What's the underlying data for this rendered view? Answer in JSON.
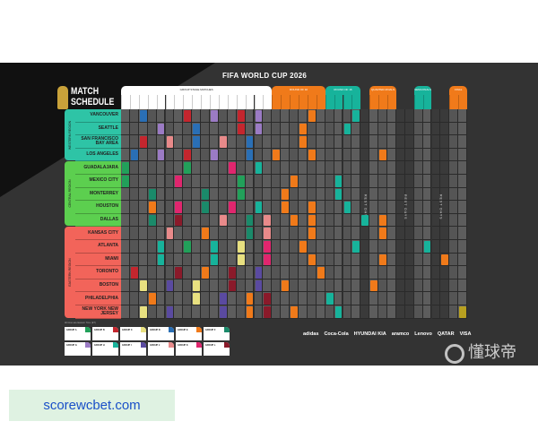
{
  "poster": {
    "title": "FIFA WORLD CUP 2026",
    "logo_text": "MATCH SCHEDULE",
    "note": "All times are Eastern Time (ET)"
  },
  "stages": [
    {
      "label": "GROUP STAGE MATCHES",
      "cols": 17,
      "color": "#ffffff"
    },
    {
      "label": "ROUND OF 32",
      "cols": 6,
      "color": "#f07a1a"
    },
    {
      "label": "ROUND OF 16",
      "cols": 4,
      "color": "#17b39b"
    },
    {
      "label": "REST DAY",
      "cols": 1,
      "color": "rest"
    },
    {
      "label": "QUARTER-FINALS",
      "cols": 3,
      "color": "#f07a1a"
    },
    {
      "label": "REST DAYS",
      "cols": 2,
      "color": "rest"
    },
    {
      "label": "SEMI-FINALS",
      "cols": 2,
      "color": "#17b39b"
    },
    {
      "label": "REST DAYS",
      "cols": 2,
      "color": "rest"
    },
    {
      "label": "FINAL",
      "cols": 2,
      "color": "#f07a1a"
    }
  ],
  "regions": [
    {
      "label": "WESTERN REGION",
      "rows": 4,
      "color": "#2ec4a6"
    },
    {
      "label": "CENTRAL REGION",
      "rows": 5,
      "color": "#5ccf4f"
    },
    {
      "label": "EASTERN REGION",
      "rows": 7,
      "color": "#f2645a"
    }
  ],
  "cities": [
    "VANCOUVER",
    "SEATTLE",
    "SAN FRANCISCO BAY AREA",
    "LOS ANGELES",
    "GUADALAJARA",
    "MEXICO CITY",
    "MONTERREY",
    "HOUSTON",
    "DALLAS",
    "KANSAS CITY",
    "ATLANTA",
    "MIAMI",
    "TORONTO",
    "BOSTON",
    "PHILADELPHIA",
    "NEW YORK NEW JERSEY"
  ],
  "matches": [
    [
      0,
      2,
      "#2a6fb5"
    ],
    [
      0,
      7,
      "#c4262e"
    ],
    [
      0,
      10,
      "#9b7bc4"
    ],
    [
      0,
      13,
      "#c4262e"
    ],
    [
      0,
      15,
      "#9b7bc4"
    ],
    [
      0,
      21,
      "#f07a1a"
    ],
    [
      0,
      26,
      "#17b39b"
    ],
    [
      1,
      4,
      "#9b7bc4"
    ],
    [
      1,
      8,
      "#2a6fb5"
    ],
    [
      1,
      13,
      "#c4262e"
    ],
    [
      1,
      15,
      "#9b7bc4"
    ],
    [
      1,
      20,
      "#f07a1a"
    ],
    [
      1,
      25,
      "#17b39b"
    ],
    [
      2,
      2,
      "#c4262e"
    ],
    [
      2,
      5,
      "#e88a8a"
    ],
    [
      2,
      8,
      "#2a6fb5"
    ],
    [
      2,
      11,
      "#e88a8a"
    ],
    [
      2,
      14,
      "#2a6fb5"
    ],
    [
      2,
      20,
      "#f07a1a"
    ],
    [
      3,
      1,
      "#2a6fb5"
    ],
    [
      3,
      4,
      "#9b7bc4"
    ],
    [
      3,
      7,
      "#c4262e"
    ],
    [
      3,
      10,
      "#9b7bc4"
    ],
    [
      3,
      14,
      "#2a6fb5"
    ],
    [
      3,
      17,
      "#f07a1a"
    ],
    [
      3,
      21,
      "#f07a1a"
    ],
    [
      3,
      29,
      "#f07a1a"
    ],
    [
      4,
      0,
      "#22a05a"
    ],
    [
      4,
      7,
      "#22a05a"
    ],
    [
      4,
      12,
      "#e0266e"
    ],
    [
      4,
      15,
      "#17b39b"
    ],
    [
      5,
      0,
      "#22a05a"
    ],
    [
      5,
      6,
      "#e0266e"
    ],
    [
      5,
      13,
      "#22a05a"
    ],
    [
      5,
      19,
      "#f07a1a"
    ],
    [
      5,
      24,
      "#17b39b"
    ],
    [
      6,
      3,
      "#1a8a6a"
    ],
    [
      6,
      9,
      "#1a8a6a"
    ],
    [
      6,
      13,
      "#22a05a"
    ],
    [
      6,
      18,
      "#f07a1a"
    ],
    [
      6,
      24,
      "#17b39b"
    ],
    [
      7,
      3,
      "#f07a1a"
    ],
    [
      7,
      6,
      "#e0266e"
    ],
    [
      7,
      9,
      "#1a8a6a"
    ],
    [
      7,
      12,
      "#e0266e"
    ],
    [
      7,
      15,
      "#17b39b"
    ],
    [
      7,
      18,
      "#f07a1a"
    ],
    [
      7,
      21,
      "#f07a1a"
    ],
    [
      7,
      25,
      "#17b39b"
    ],
    [
      8,
      3,
      "#1a8a6a"
    ],
    [
      8,
      6,
      "#8a1a2a"
    ],
    [
      8,
      11,
      "#e88a8a"
    ],
    [
      8,
      14,
      "#1a8a6a"
    ],
    [
      8,
      16,
      "#e88a8a"
    ],
    [
      8,
      19,
      "#f07a1a"
    ],
    [
      8,
      21,
      "#f07a1a"
    ],
    [
      8,
      27,
      "#17b39b"
    ],
    [
      8,
      29,
      "#f07a1a"
    ],
    [
      9,
      5,
      "#e88a8a"
    ],
    [
      9,
      9,
      "#f07a1a"
    ],
    [
      9,
      14,
      "#1a8a6a"
    ],
    [
      9,
      16,
      "#e88a8a"
    ],
    [
      9,
      21,
      "#f07a1a"
    ],
    [
      9,
      29,
      "#f07a1a"
    ],
    [
      10,
      4,
      "#17b39b"
    ],
    [
      10,
      7,
      "#22a05a"
    ],
    [
      10,
      10,
      "#17b39b"
    ],
    [
      10,
      13,
      "#e8e080"
    ],
    [
      10,
      16,
      "#e0266e"
    ],
    [
      10,
      20,
      "#f07a1a"
    ],
    [
      10,
      26,
      "#17b39b"
    ],
    [
      10,
      34,
      "#17b39b"
    ],
    [
      11,
      4,
      "#17b39b"
    ],
    [
      11,
      10,
      "#17b39b"
    ],
    [
      11,
      13,
      "#e8e080"
    ],
    [
      11,
      16,
      "#e0266e"
    ],
    [
      11,
      21,
      "#f07a1a"
    ],
    [
      11,
      29,
      "#f07a1a"
    ],
    [
      11,
      36,
      "#f07a1a"
    ],
    [
      12,
      1,
      "#c4262e"
    ],
    [
      12,
      6,
      "#8a1a2a"
    ],
    [
      12,
      9,
      "#f07a1a"
    ],
    [
      12,
      12,
      "#8a1a2a"
    ],
    [
      12,
      15,
      "#5a4aa0"
    ],
    [
      12,
      22,
      "#f07a1a"
    ],
    [
      13,
      2,
      "#e8e080"
    ],
    [
      13,
      5,
      "#5a4aa0"
    ],
    [
      13,
      8,
      "#e8e080"
    ],
    [
      13,
      12,
      "#8a1a2a"
    ],
    [
      13,
      15,
      "#5a4aa0"
    ],
    [
      13,
      18,
      "#f07a1a"
    ],
    [
      13,
      28,
      "#f07a1a"
    ],
    [
      14,
      3,
      "#f07a1a"
    ],
    [
      14,
      8,
      "#e8e080"
    ],
    [
      14,
      11,
      "#5a4aa0"
    ],
    [
      14,
      14,
      "#f07a1a"
    ],
    [
      14,
      16,
      "#8a1a2a"
    ],
    [
      14,
      23,
      "#17b39b"
    ],
    [
      15,
      2,
      "#e8e080"
    ],
    [
      15,
      5,
      "#5a4aa0"
    ],
    [
      15,
      11,
      "#5a4aa0"
    ],
    [
      15,
      14,
      "#f07a1a"
    ],
    [
      15,
      16,
      "#8a1a2a"
    ],
    [
      15,
      19,
      "#f07a1a"
    ],
    [
      15,
      24,
      "#17b39b"
    ],
    [
      15,
      38,
      "#b8a020"
    ]
  ],
  "groups": [
    "GROUP A",
    "GROUP B",
    "GROUP C",
    "GROUP D",
    "GROUP E",
    "GROUP F",
    "GROUP G",
    "GROUP H",
    "GROUP I",
    "GROUP J",
    "GROUP K",
    "GROUP L"
  ],
  "group_colors": [
    "#22a05a",
    "#c4262e",
    "#e8e080",
    "#2a6fb5",
    "#f07a1a",
    "#1a8a6a",
    "#9b7bc4",
    "#17b39b",
    "#5a4aa0",
    "#e88a8a",
    "#e0266e",
    "#8a1a2a"
  ],
  "sponsors": [
    "adidas",
    "Coca-Cola",
    "HYUNDAI KIA",
    "aramco",
    "Lenovo",
    "QATAR",
    "VISA"
  ],
  "watermark": "懂球帝",
  "site": "scorewcbet.com"
}
